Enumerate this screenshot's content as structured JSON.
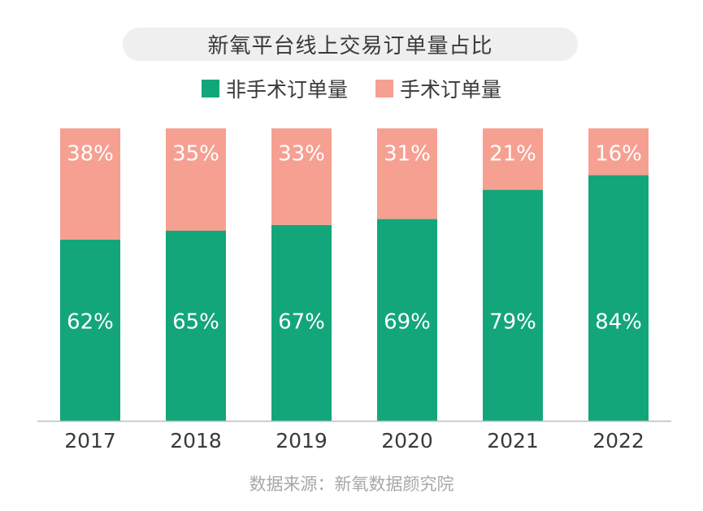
{
  "chart_data": {
    "type": "bar",
    "stacked": true,
    "title": "新氧平台线上交易订单量占比",
    "categories": [
      "2017",
      "2018",
      "2019",
      "2020",
      "2021",
      "2022"
    ],
    "series": [
      {
        "name": "非手术订单量",
        "color": "#13a67a",
        "values": [
          62,
          65,
          67,
          69,
          79,
          84
        ],
        "labels": [
          "62%",
          "65%",
          "67%",
          "69%",
          "79%",
          "84%"
        ]
      },
      {
        "name": "手术订单量",
        "color": "#f6a092",
        "values": [
          38,
          35,
          33,
          31,
          21,
          16
        ],
        "labels": [
          "38%",
          "35%",
          "33%",
          "31%",
          "21%",
          "16%"
        ]
      }
    ],
    "ylim": [
      0,
      100
    ],
    "legend_position": "top-center",
    "grid": false
  },
  "source_note": "数据来源：新氧数据颜究院"
}
